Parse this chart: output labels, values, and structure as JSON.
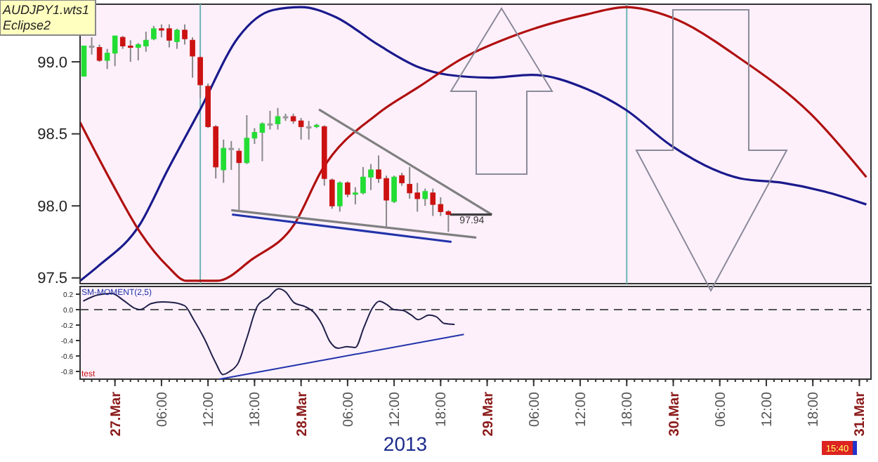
{
  "chart_data": [
    {
      "type": "candlestick",
      "xlim": [
        "2013-03-26T19:30",
        "2013-03-31T01:30"
      ],
      "ylim": [
        97.46,
        99.4
      ],
      "yticks": [
        {
          "value": 97.5,
          "label": "97.5"
        },
        {
          "value": 98,
          "label": "98.0"
        },
        {
          "value": 98.5,
          "label": "98.5"
        },
        {
          "value": 99,
          "label": "99.0"
        }
      ],
      "tick_labels": "y",
      "grid": false,
      "x": [
        "2013-03-26T20:00",
        "2013-03-26T21:00",
        "2013-03-26T22:00",
        "2013-03-26T23:00",
        "2013-03-27T00:00",
        "2013-03-27T01:00",
        "2013-03-27T02:00",
        "2013-03-27T03:00",
        "2013-03-27T04:00",
        "2013-03-27T05:00",
        "2013-03-27T06:00",
        "2013-03-27T07:00",
        "2013-03-27T08:00",
        "2013-03-27T09:00",
        "2013-03-27T10:00",
        "2013-03-27T11:00",
        "2013-03-27T12:00",
        "2013-03-27T13:00",
        "2013-03-27T14:00",
        "2013-03-27T15:00",
        "2013-03-27T16:00",
        "2013-03-27T17:00",
        "2013-03-27T18:00",
        "2013-03-27T19:00",
        "2013-03-27T20:00",
        "2013-03-27T21:00",
        "2013-03-27T22:00",
        "2013-03-27T23:00",
        "2013-03-28T00:00",
        "2013-03-28T01:00",
        "2013-03-28T02:00",
        "2013-03-28T03:00",
        "2013-03-28T04:00",
        "2013-03-28T05:00",
        "2013-03-28T06:00",
        "2013-03-28T07:00",
        "2013-03-28T08:00",
        "2013-03-28T09:00",
        "2013-03-28T10:00",
        "2013-03-28T11:00",
        "2013-03-28T12:00",
        "2013-03-28T13:00",
        "2013-03-28T14:00",
        "2013-03-28T15:00",
        "2013-03-28T16:00",
        "2013-03-28T17:00",
        "2013-03-28T18:00",
        "2013-03-28T19:00"
      ],
      "ohlc": [
        [
          98.9,
          99.11,
          98.9,
          99.11
        ],
        [
          99.11,
          99.17,
          99.05,
          99.11
        ],
        [
          99.1,
          99.12,
          99.0,
          99.01
        ],
        [
          99.01,
          99.09,
          98.95,
          99.06
        ],
        [
          99.06,
          99.18,
          98.97,
          99.18
        ],
        [
          99.17,
          99.18,
          99.09,
          99.11
        ],
        [
          99.11,
          99.15,
          99.0,
          99.1
        ],
        [
          99.1,
          99.13,
          99.01,
          99.12
        ],
        [
          99.11,
          99.21,
          99.07,
          99.15
        ],
        [
          99.16,
          99.25,
          99.15,
          99.23
        ],
        [
          99.23,
          99.26,
          99.17,
          99.22
        ],
        [
          99.23,
          99.26,
          99.1,
          99.15
        ],
        [
          99.14,
          99.23,
          99.09,
          99.22
        ],
        [
          99.22,
          99.26,
          99.12,
          99.16
        ],
        [
          99.15,
          99.17,
          98.89,
          99.04
        ],
        [
          99.03,
          99.04,
          98.75,
          98.84
        ],
        [
          98.83,
          98.85,
          98.54,
          98.55
        ],
        [
          98.55,
          98.56,
          98.19,
          98.27
        ],
        [
          98.25,
          98.46,
          98.16,
          98.4
        ],
        [
          98.4,
          98.45,
          98.25,
          98.4
        ],
        [
          98.38,
          98.4,
          97.96,
          98.3
        ],
        [
          98.3,
          98.63,
          98.29,
          98.47
        ],
        [
          98.47,
          98.54,
          98.43,
          98.51
        ],
        [
          98.51,
          98.58,
          98.31,
          98.57
        ],
        [
          98.57,
          98.66,
          98.53,
          98.57
        ],
        [
          98.57,
          98.68,
          98.53,
          98.62
        ],
        [
          98.62,
          98.64,
          98.59,
          98.62
        ],
        [
          98.62,
          98.64,
          98.57,
          98.59
        ],
        [
          98.59,
          98.61,
          98.46,
          98.55
        ],
        [
          98.55,
          98.59,
          98.46,
          98.55
        ],
        [
          98.55,
          98.57,
          98.54,
          98.56
        ],
        [
          98.55,
          98.56,
          98.14,
          98.19
        ],
        [
          98.18,
          98.19,
          97.98,
          98.0
        ],
        [
          98.0,
          98.17,
          97.96,
          98.16
        ],
        [
          98.16,
          98.17,
          98.06,
          98.08
        ],
        [
          98.08,
          98.13,
          98.01,
          98.09
        ],
        [
          98.09,
          98.27,
          98.08,
          98.2
        ],
        [
          98.2,
          98.29,
          98.11,
          98.25
        ],
        [
          98.25,
          98.35,
          98.16,
          98.19
        ],
        [
          98.19,
          98.21,
          97.85,
          98.04
        ],
        [
          98.03,
          98.21,
          98.02,
          98.2
        ],
        [
          98.21,
          98.23,
          98.14,
          98.16
        ],
        [
          98.15,
          98.27,
          98.05,
          98.09
        ],
        [
          98.09,
          98.16,
          97.96,
          98.05
        ],
        [
          98.05,
          98.12,
          98.0,
          98.1
        ],
        [
          98.09,
          98.12,
          97.93,
          98.01
        ],
        [
          98.01,
          98.06,
          97.93,
          97.96
        ],
        [
          97.96,
          97.97,
          97.82,
          97.94
        ]
      ],
      "series": [
        {
          "type": "line",
          "color": "#1a1a8c",
          "x": [
            "2013-03-26T19:30",
            "2013-03-26T21:48",
            "2013-03-27T03:12",
            "2013-03-27T06:48",
            "2013-03-27T11:00",
            "2013-03-27T15:54",
            "2013-03-27T20:24",
            "2013-03-28T00:00",
            "2013-03-28T04:30",
            "2013-03-28T09:54",
            "2013-03-28T15:18",
            "2013-03-28T18:54",
            "2013-03-29T00:18",
            "2013-03-29T05:42",
            "2013-03-29T12:54",
            "2013-03-29T17:48",
            "2013-03-29T23:42",
            "2013-03-30T08:42",
            "2013-03-30T14:06",
            "2013-03-30T19:30",
            "2013-03-31T00:54"
          ],
          "values": [
            97.48,
            97.58,
            97.87,
            98.25,
            98.67,
            99.17,
            99.36,
            99.38,
            99.31,
            99.12,
            98.96,
            98.91,
            98.89,
            98.91,
            98.81,
            98.67,
            98.42,
            98.19,
            98.16,
            98.1,
            98.01
          ]
        },
        {
          "type": "line",
          "color": "#b01010",
          "x": [
            "2013-03-26T19:30",
            "2013-03-26T23:36",
            "2013-03-27T03:12",
            "2013-03-27T06:48",
            "2013-03-27T09:12",
            "2013-03-27T13:12",
            "2013-03-27T17:42",
            "2013-03-27T23:06",
            "2013-03-28T02:42",
            "2013-03-28T09:54",
            "2013-03-28T15:18",
            "2013-03-28T20:42",
            "2013-03-29T03:54",
            "2013-03-29T12:54",
            "2013-03-29T17:54",
            "2013-03-29T23:42",
            "2013-03-30T08:42",
            "2013-03-30T17:42",
            "2013-03-31T00:54"
          ],
          "values": [
            98.58,
            98.16,
            97.82,
            97.58,
            97.48,
            97.48,
            97.63,
            97.87,
            98.25,
            98.64,
            98.83,
            99.02,
            99.19,
            99.33,
            99.38,
            99.31,
            99.02,
            98.64,
            98.2
          ]
        },
        {
          "type": "line",
          "color": "#808080",
          "x": [
            "2013-03-28T02:18",
            "2013-03-29T00:36"
          ],
          "values": [
            98.67,
            97.94
          ]
        },
        {
          "type": "line",
          "color": "#808080",
          "x": [
            "2013-03-27T15:00",
            "2013-03-28T22:36"
          ],
          "values": [
            97.97,
            97.78
          ]
        },
        {
          "type": "line",
          "color": "#404040",
          "x": [
            "2013-03-28T19:12",
            "2013-03-29T00:36"
          ],
          "values": [
            97.94,
            97.94
          ]
        },
        {
          "type": "line",
          "color": "#2233aa",
          "x": [
            "2013-03-27T15:06",
            "2013-03-28T19:24"
          ],
          "values": [
            97.94,
            97.75
          ]
        }
      ],
      "ref_lines": [
        {
          "axis": "x",
          "value": "2013-03-27T11:00",
          "color": "#6fb5b5"
        },
        {
          "axis": "x",
          "value": "2013-03-29T18:00",
          "color": "#6fb5b5"
        }
      ],
      "annotations": [
        "AUDJPY1.wts1",
        "Eclipse2",
        {
          "text": "97.94",
          "x": "2013-03-28T19:00",
          "y": 97.94
        }
      ]
    },
    {
      "type": "line",
      "xlim": [
        "2013-03-26T19:30",
        "2013-03-31T01:30"
      ],
      "ylim": [
        -0.9,
        0.3
      ],
      "xlabel": "2013",
      "grid": false,
      "yticks": [
        0.2,
        {
          "value": 0,
          "label": "0.0"
        },
        -0.2,
        -0.4,
        -0.6,
        -0.8
      ],
      "xticks": [
        {
          "value": "2013-03-27T00:00",
          "label": "27.Mar"
        },
        {
          "value": "2013-03-27T06:00",
          "label": "06:00"
        },
        {
          "value": "2013-03-27T12:00",
          "label": "12:00"
        },
        {
          "value": "2013-03-27T18:00",
          "label": "18:00"
        },
        {
          "value": "2013-03-28T00:00",
          "label": "28.Mar"
        },
        {
          "value": "2013-03-28T06:00",
          "label": "06:00"
        },
        {
          "value": "2013-03-28T12:00",
          "label": "12:00"
        },
        {
          "value": "2013-03-28T18:00",
          "label": "18:00"
        },
        {
          "value": "2013-03-29T00:00",
          "label": "29.Mar"
        },
        {
          "value": "2013-03-29T06:00",
          "label": "06:00"
        },
        {
          "value": "2013-03-29T12:00",
          "label": "12:00"
        },
        {
          "value": "2013-03-29T18:00",
          "label": "18:00"
        },
        {
          "value": "2013-03-30T00:00",
          "label": "30.Mar"
        },
        {
          "value": "2013-03-30T06:00",
          "label": "06:00"
        },
        {
          "value": "2013-03-30T12:00",
          "label": "12:00"
        },
        {
          "value": "2013-03-30T18:00",
          "label": "18:00"
        },
        {
          "value": "2013-03-31T00:00",
          "label": "31.Mar"
        }
      ],
      "series": [
        {
          "color": "#20204a",
          "x": [
            "2013-03-26T19:54",
            "2013-03-26T21:48",
            "2013-03-26T23:36",
            "2013-03-27T01:06",
            "2013-03-27T02:30",
            "2013-03-27T03:12",
            "2013-03-27T04:42",
            "2013-03-27T06:06",
            "2013-03-27T07:36",
            "2013-03-27T09:00",
            "2013-03-27T10:06",
            "2013-03-27T11:30",
            "2013-03-27T13:00",
            "2013-03-27T13:54",
            "2013-03-27T14:48",
            "2013-03-27T15:54",
            "2013-03-27T17:00",
            "2013-03-27T18:24",
            "2013-03-27T19:48",
            "2013-03-27T21:06",
            "2013-03-27T22:00",
            "2013-03-27T23:06",
            "2013-03-28T00:30",
            "2013-03-28T01:36",
            "2013-03-28T02:42",
            "2013-03-28T03:42",
            "2013-03-28T04:48",
            "2013-03-28T05:54",
            "2013-03-28T07:00",
            "2013-03-28T08:06",
            "2013-03-28T09:12",
            "2013-03-28T10:06",
            "2013-03-28T11:00",
            "2013-03-28T12:00",
            "2013-03-28T13:06",
            "2013-03-28T14:12",
            "2013-03-28T15:06",
            "2013-03-28T16:30",
            "2013-03-28T17:24",
            "2013-03-28T18:30",
            "2013-03-28T19:48"
          ],
          "values": [
            0.11,
            0.19,
            0.21,
            0.12,
            0.02,
            0.0,
            0.08,
            0.1,
            0.09,
            0.05,
            -0.12,
            -0.37,
            -0.69,
            -0.84,
            -0.8,
            -0.69,
            -0.37,
            0.05,
            0.16,
            0.27,
            0.23,
            0.09,
            0.04,
            -0.03,
            -0.19,
            -0.41,
            -0.5,
            -0.48,
            -0.49,
            -0.23,
            0.02,
            0.11,
            0.07,
            0.0,
            -0.01,
            -0.07,
            -0.13,
            -0.07,
            -0.09,
            -0.18,
            -0.19
          ]
        },
        {
          "color": "#2233aa",
          "x": [
            "2013-03-27T13:30",
            "2013-03-28T21:00"
          ],
          "values": [
            -0.9,
            -0.32
          ]
        }
      ],
      "ref_lines": [
        {
          "axis": "y",
          "value": 0,
          "color": "#555555",
          "line_style": "dashed"
        }
      ],
      "annotations": [
        "SM-MOMENT(2,5)",
        "test",
        "15:40"
      ]
    }
  ]
}
